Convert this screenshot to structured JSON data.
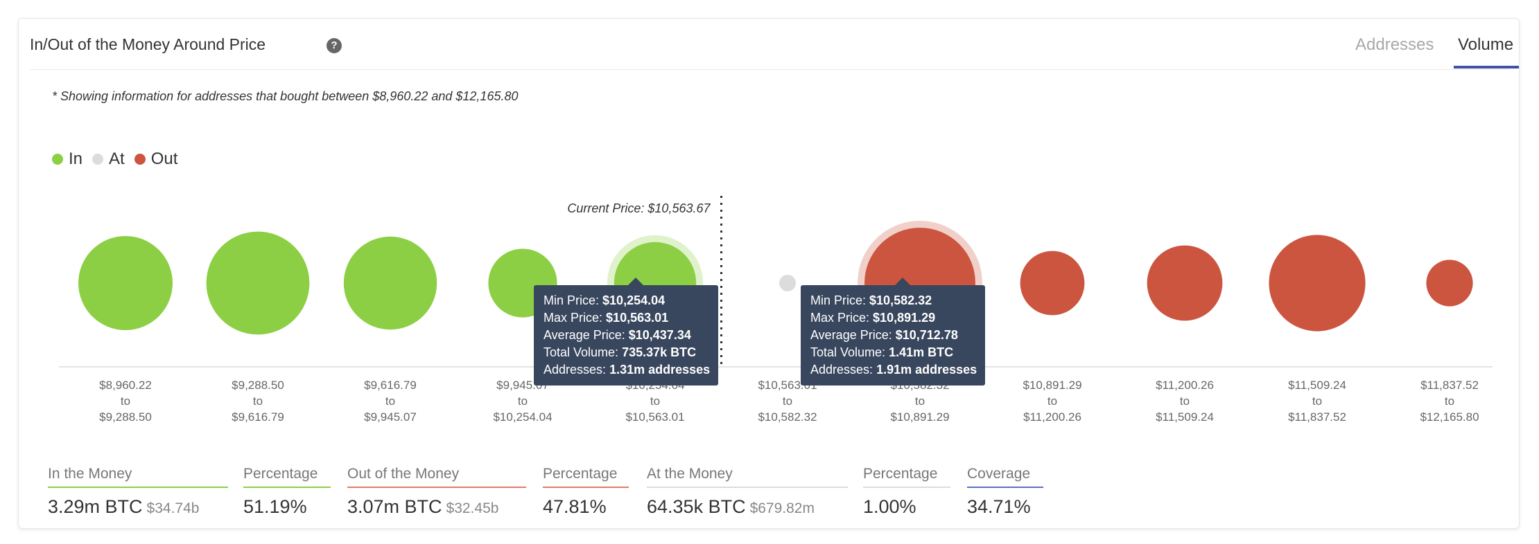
{
  "header": {
    "title": "In/Out of the Money Around Price",
    "help_icon": "question-circle-icon",
    "tabs": [
      {
        "label": "Addresses",
        "active": false
      },
      {
        "label": "Volume",
        "active": true
      }
    ]
  },
  "note": "* Showing information for addresses that bought between $8,960.22 and $12,165.80",
  "legend": [
    {
      "label": "In",
      "color": "#8dcf44"
    },
    {
      "label": "At",
      "color": "#dcdcdc"
    },
    {
      "label": "Out",
      "color": "#cc5540"
    }
  ],
  "chart_data": {
    "type": "bubble",
    "current_price_label": "Current Price: $10,563.67",
    "status_colors": {
      "in": "#8dcf44",
      "at": "#dcdcdc",
      "out": "#cc5540"
    },
    "buckets": [
      {
        "from": "$8,960.22",
        "to": "$9,288.50",
        "status": "in",
        "relative_volume": 0.85
      },
      {
        "from": "$9,288.50",
        "to": "$9,616.79",
        "status": "in",
        "relative_volume": 0.93
      },
      {
        "from": "$9,616.79",
        "to": "$9,945.07",
        "status": "in",
        "relative_volume": 0.84
      },
      {
        "from": "$9,945.07",
        "to": "$10,254.04",
        "status": "in",
        "relative_volume": 0.62
      },
      {
        "from": "$10,254.04",
        "to": "$10,563.01",
        "status": "in",
        "relative_volume": 0.74,
        "total_volume": "735.37k BTC"
      },
      {
        "from": "$10,563.01",
        "to": "$10,582.32",
        "status": "at",
        "relative_volume": 0.15
      },
      {
        "from": "$10,582.32",
        "to": "$10,891.29",
        "status": "out",
        "relative_volume": 1.0,
        "total_volume": "1.41m BTC"
      },
      {
        "from": "$10,891.29",
        "to": "$11,200.26",
        "status": "out",
        "relative_volume": 0.58
      },
      {
        "from": "$11,200.26",
        "to": "$11,509.24",
        "status": "out",
        "relative_volume": 0.68
      },
      {
        "from": "$11,509.24",
        "to": "$11,837.52",
        "status": "out",
        "relative_volume": 0.87
      },
      {
        "from": "$11,837.52",
        "to": "$12,165.80",
        "status": "out",
        "relative_volume": 0.42
      }
    ],
    "tick_to_word": "to"
  },
  "tooltips": [
    {
      "rows": [
        {
          "label": "Min Price:",
          "value": "$10,254.04"
        },
        {
          "label": "Max Price:",
          "value": "$10,563.01"
        },
        {
          "label": "Average Price:",
          "value": "$10,437.34"
        },
        {
          "label": "Total Volume:",
          "value": "735.37k BTC"
        },
        {
          "label": "Addresses:",
          "value": "1.31m addresses"
        }
      ]
    },
    {
      "rows": [
        {
          "label": "Min Price:",
          "value": "$10,582.32"
        },
        {
          "label": "Max Price:",
          "value": "$10,891.29"
        },
        {
          "label": "Average Price:",
          "value": "$10,712.78"
        },
        {
          "label": "Total Volume:",
          "value": "1.41m BTC"
        },
        {
          "label": "Addresses:",
          "value": "1.91m addresses"
        }
      ]
    }
  ],
  "summary": [
    {
      "label": "In the Money",
      "value": "3.29m BTC",
      "sub": "$34.74b",
      "color": "#8dcf44"
    },
    {
      "label": "Percentage",
      "value": "51.19%",
      "sub": "",
      "color": "#8dcf44"
    },
    {
      "label": "Out of the Money",
      "value": "3.07m BTC",
      "sub": "$32.45b",
      "color": "#e07a68"
    },
    {
      "label": "Percentage",
      "value": "47.81%",
      "sub": "",
      "color": "#e07a68"
    },
    {
      "label": "At the Money",
      "value": "64.35k BTC",
      "sub": "$679.82m",
      "color": "#dcdcdc"
    },
    {
      "label": "Percentage",
      "value": "1.00%",
      "sub": "",
      "color": "#dcdcdc"
    },
    {
      "label": "Coverage",
      "value": "34.71%",
      "sub": "",
      "color": "#5d6fc4"
    }
  ]
}
